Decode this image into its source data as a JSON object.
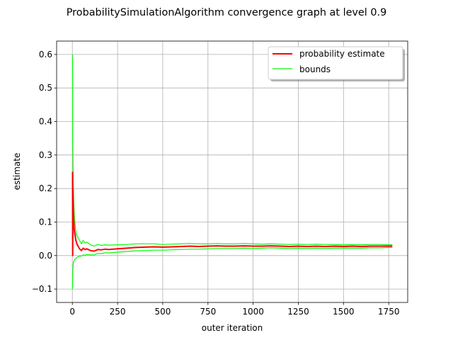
{
  "chart_data": {
    "type": "line",
    "title": "ProbabilitySimulationAlgorithm convergence graph at level 0.9",
    "xlabel": "outer iteration",
    "ylabel": "estimate",
    "xlim": [
      -87,
      1855
    ],
    "ylim": [
      -0.14,
      0.64
    ],
    "xticks": [
      0,
      250,
      500,
      750,
      1000,
      1250,
      1500,
      1750
    ],
    "xtick_labels": [
      "0",
      "250",
      "500",
      "750",
      "1000",
      "1250",
      "1500",
      "1750"
    ],
    "yticks": [
      -0.1,
      0.0,
      0.1,
      0.2,
      0.3,
      0.4,
      0.5,
      0.6
    ],
    "ytick_labels": [
      "−0.1",
      "0.0",
      "0.1",
      "0.2",
      "0.3",
      "0.4",
      "0.5",
      "0.6"
    ],
    "grid": true,
    "legend_position": "top-right",
    "series": [
      {
        "name": "probability estimate",
        "color": "#ff0000",
        "role": "estimate",
        "x": [
          1,
          2,
          3,
          4,
          5,
          6,
          8,
          10,
          12,
          15,
          18,
          20,
          25,
          30,
          40,
          50,
          60,
          70,
          80,
          100,
          120,
          140,
          160,
          180,
          200,
          250,
          300,
          350,
          400,
          450,
          500,
          550,
          600,
          650,
          700,
          750,
          800,
          850,
          900,
          950,
          1000,
          1050,
          1100,
          1150,
          1200,
          1250,
          1300,
          1350,
          1400,
          1450,
          1500,
          1550,
          1600,
          1650,
          1700,
          1750,
          1770
        ],
        "values": [
          0.25,
          0.0,
          0.2,
          0.17,
          0.14,
          0.12,
          0.1,
          0.08,
          0.07,
          0.06,
          0.05,
          0.045,
          0.035,
          0.03,
          0.02,
          0.015,
          0.022,
          0.018,
          0.02,
          0.015,
          0.013,
          0.018,
          0.017,
          0.019,
          0.018,
          0.02,
          0.022,
          0.024,
          0.025,
          0.026,
          0.025,
          0.026,
          0.027,
          0.028,
          0.027,
          0.028,
          0.029,
          0.028,
          0.028,
          0.029,
          0.028,
          0.028,
          0.029,
          0.028,
          0.027,
          0.028,
          0.027,
          0.028,
          0.027,
          0.028,
          0.027,
          0.028,
          0.027,
          0.028,
          0.028,
          0.028,
          0.028
        ]
      },
      {
        "name": "bounds",
        "color": "#00ff00",
        "role": "upper",
        "x": [
          1,
          2,
          3,
          4,
          5,
          6,
          8,
          10,
          12,
          15,
          18,
          20,
          25,
          30,
          40,
          50,
          60,
          70,
          80,
          100,
          120,
          140,
          160,
          180,
          200,
          250,
          300,
          350,
          400,
          450,
          500,
          550,
          600,
          650,
          700,
          750,
          800,
          850,
          900,
          950,
          1000,
          1050,
          1100,
          1150,
          1200,
          1250,
          1300,
          1350,
          1400,
          1450,
          1500,
          1550,
          1600,
          1650,
          1700,
          1750,
          1770
        ],
        "values": [
          0.6,
          0.35,
          0.3,
          0.26,
          0.22,
          0.19,
          0.16,
          0.13,
          0.11,
          0.095,
          0.08,
          0.07,
          0.06,
          0.055,
          0.045,
          0.035,
          0.045,
          0.038,
          0.04,
          0.032,
          0.028,
          0.033,
          0.03,
          0.032,
          0.031,
          0.032,
          0.033,
          0.035,
          0.035,
          0.035,
          0.033,
          0.034,
          0.035,
          0.036,
          0.035,
          0.035,
          0.036,
          0.035,
          0.035,
          0.036,
          0.035,
          0.034,
          0.035,
          0.034,
          0.033,
          0.034,
          0.033,
          0.034,
          0.033,
          0.033,
          0.032,
          0.033,
          0.032,
          0.033,
          0.033,
          0.032,
          0.032
        ]
      },
      {
        "color": "#00ff00",
        "role": "lower",
        "x": [
          1,
          2,
          3,
          4,
          5,
          6,
          8,
          10,
          12,
          15,
          18,
          20,
          25,
          30,
          40,
          50,
          60,
          70,
          80,
          100,
          120,
          140,
          160,
          180,
          200,
          250,
          300,
          350,
          400,
          450,
          500,
          550,
          600,
          650,
          700,
          750,
          800,
          850,
          900,
          950,
          1000,
          1050,
          1100,
          1150,
          1200,
          1250,
          1300,
          1350,
          1400,
          1450,
          1500,
          1550,
          1600,
          1650,
          1700,
          1750,
          1770
        ],
        "values": [
          -0.1,
          -0.06,
          -0.04,
          -0.03,
          -0.025,
          -0.02,
          -0.017,
          -0.015,
          -0.013,
          -0.011,
          -0.009,
          -0.008,
          -0.006,
          -0.004,
          -0.002,
          -0.002,
          0.002,
          0.001,
          0.003,
          0.002,
          0.002,
          0.006,
          0.006,
          0.008,
          0.008,
          0.01,
          0.012,
          0.014,
          0.015,
          0.016,
          0.016,
          0.017,
          0.018,
          0.019,
          0.019,
          0.02,
          0.021,
          0.021,
          0.021,
          0.022,
          0.021,
          0.022,
          0.023,
          0.022,
          0.021,
          0.022,
          0.021,
          0.022,
          0.021,
          0.022,
          0.022,
          0.022,
          0.022,
          0.023,
          0.023,
          0.024,
          0.024
        ]
      }
    ]
  }
}
